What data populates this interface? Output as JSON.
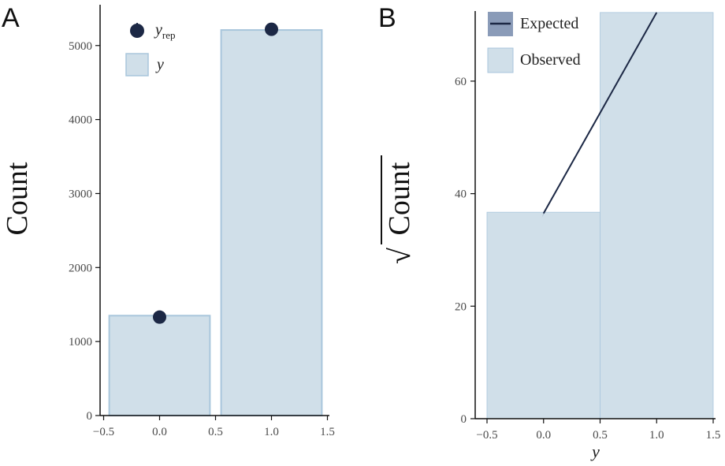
{
  "colors": {
    "bar_fill": "#d0dfe9",
    "bar_edge": "#a9c6dc",
    "point": "#1c2845",
    "line": "#1c2845",
    "band": "#8a9bb8",
    "axis": "#111111"
  },
  "chart_data": [
    {
      "panel_label": "A",
      "type": "bar",
      "categories": [
        0,
        1
      ],
      "series": [
        {
          "name": "y",
          "kind": "bar",
          "x": [
            0,
            1
          ],
          "values": [
            1350,
            5210
          ]
        },
        {
          "name": "y_rep",
          "kind": "point",
          "x": [
            0,
            1
          ],
          "values": [
            1330,
            5220
          ]
        }
      ],
      "ylabel": "Count",
      "xlabel": "",
      "xlim": [
        -0.5,
        1.5
      ],
      "ylim": [
        0,
        5300
      ],
      "xticks": [
        "−0.5",
        "0.0",
        "0.5",
        "1.0",
        "1.5"
      ],
      "yticks": [
        "0",
        "1000",
        "2000",
        "3000",
        "4000",
        "5000"
      ],
      "legend": {
        "placement": "top-left",
        "entries": [
          {
            "label_main": "y",
            "label_sub": "rep",
            "symbol": "point"
          },
          {
            "label_main": "y",
            "label_sub": "",
            "symbol": "bar"
          }
        ]
      },
      "grid": false
    },
    {
      "panel_label": "B",
      "type": "bar",
      "categories": [
        0,
        1
      ],
      "series": [
        {
          "name": "Observed",
          "kind": "bar",
          "x": [
            0,
            1
          ],
          "values": [
            36.7,
            72.2
          ]
        },
        {
          "name": "Expected",
          "kind": "line",
          "x": [
            0,
            1
          ],
          "values": [
            36.5,
            72.2
          ]
        }
      ],
      "ylabel": "Count",
      "ylabel_prefix": "√",
      "xlabel": "y",
      "xlim": [
        -0.5,
        1.5
      ],
      "ylim": [
        0,
        72.2
      ],
      "xticks": [
        "−0.5",
        "0.0",
        "0.5",
        "1.0",
        "1.5"
      ],
      "yticks": [
        "0",
        "20",
        "40",
        "60"
      ],
      "legend": {
        "placement": "top-left",
        "entries": [
          {
            "label": "Expected",
            "symbol": "line"
          },
          {
            "label": "Observed",
            "symbol": "bar"
          }
        ]
      },
      "grid": false
    }
  ]
}
